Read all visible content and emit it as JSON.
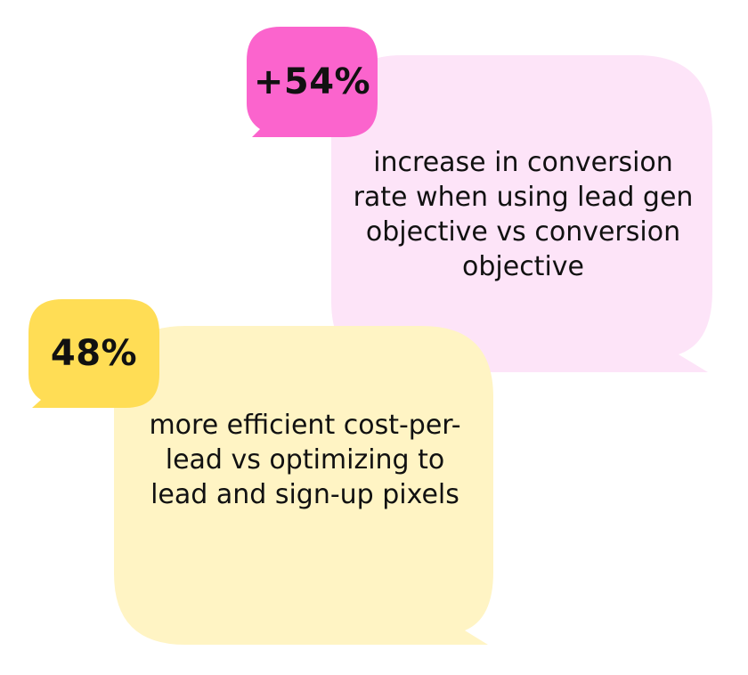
{
  "colors": {
    "pink_bubble": "#fde4f8",
    "pink_badge": "#fb64cd",
    "yellow_bubble": "#fff4c4",
    "yellow_badge": "#ffdd55",
    "text": "#111111"
  },
  "stats": [
    {
      "value": "+54%",
      "description": "increase in conversion rate when using lead gen objective vs conversion objective"
    },
    {
      "value": "48%",
      "description": "more efficient cost-per-lead vs optimizing to lead and sign-up pixels"
    }
  ]
}
